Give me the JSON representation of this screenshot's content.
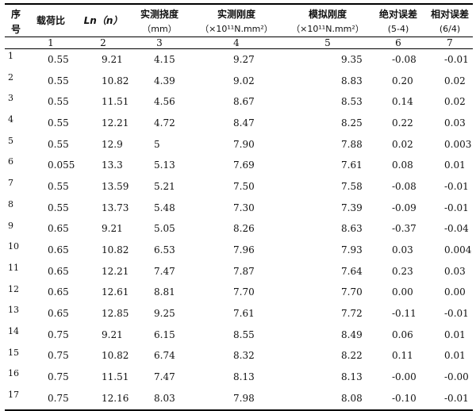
{
  "headers": {
    "seq_line1": "序",
    "seq_line2": "号",
    "load_ratio": "载荷比",
    "ln": "Ln（n）",
    "deflection": "实测挠度",
    "deflection_unit": "（mm）",
    "measured_stiffness": "实测刚度",
    "measured_stiffness_unit": "（×10¹¹N.mm²）",
    "simulated_stiffness": "模拟刚度",
    "simulated_stiffness_unit": "（×10¹¹N.mm²）",
    "abs_error": "绝对误差",
    "abs_error_formula": "(5-4)",
    "rel_error": "相对误差",
    "rel_error_formula": "(6/4)"
  },
  "column_index": [
    "1",
    "2",
    "3",
    "4",
    "5",
    "6",
    "7"
  ],
  "rows": [
    {
      "seq": "1",
      "c1": "0.55",
      "c2": "9.21",
      "c3": "4.15",
      "c4": "9.27",
      "c5": "9.35",
      "c6": "-0.08",
      "c7": "-0.01"
    },
    {
      "seq": "2",
      "c1": "0.55",
      "c2": "10.82",
      "c3": "4.39",
      "c4": "9.02",
      "c5": "8.83",
      "c6": "0.20",
      "c7": "0.02"
    },
    {
      "seq": "3",
      "c1": "0.55",
      "c2": "11.51",
      "c3": "4.56",
      "c4": "8.67",
      "c5": "8.53",
      "c6": "0.14",
      "c7": "0.02"
    },
    {
      "seq": "4",
      "c1": "0.55",
      "c2": "12.21",
      "c3": "4.72",
      "c4": "8.47",
      "c5": "8.25",
      "c6": "0.22",
      "c7": "0.03"
    },
    {
      "seq": "5",
      "c1": "0.55",
      "c2": "12.9",
      "c3": "5",
      "c4": "7.90",
      "c5": "7.88",
      "c6": "0.02",
      "c7": "0.003"
    },
    {
      "seq": "6",
      "c1": "0.055",
      "c2": "13.3",
      "c3": "5.13",
      "c4": "7.69",
      "c5": "7.61",
      "c6": "0.08",
      "c7": "0.01"
    },
    {
      "seq": "7",
      "c1": "0.55",
      "c2": "13.59",
      "c3": "5.21",
      "c4": "7.50",
      "c5": "7.58",
      "c6": "-0.08",
      "c7": "-0.01"
    },
    {
      "seq": "8",
      "c1": "0.55",
      "c2": "13.73",
      "c3": "5.48",
      "c4": "7.30",
      "c5": "7.39",
      "c6": "-0.09",
      "c7": "-0.01"
    },
    {
      "seq": "9",
      "c1": "0.65",
      "c2": "9.21",
      "c3": "5.05",
      "c4": "8.26",
      "c5": "8.63",
      "c6": "-0.37",
      "c7": "-0.04"
    },
    {
      "seq": "10",
      "c1": "0.65",
      "c2": "10.82",
      "c3": "6.53",
      "c4": "7.96",
      "c5": "7.93",
      "c6": "0.03",
      "c7": "0.004"
    },
    {
      "seq": "11",
      "c1": "0.65",
      "c2": "12.21",
      "c3": "7.47",
      "c4": "7.87",
      "c5": "7.64",
      "c6": "0.23",
      "c7": "0.03"
    },
    {
      "seq": "12",
      "c1": "0.65",
      "c2": "12.61",
      "c3": "8.81",
      "c4": "7.70",
      "c5": "7.70",
      "c6": "0.00",
      "c7": "0.00"
    },
    {
      "seq": "13",
      "c1": "0.65",
      "c2": "12.85",
      "c3": "9.25",
      "c4": "7.61",
      "c5": "7.72",
      "c6": "-0.11",
      "c7": "-0.01"
    },
    {
      "seq": "14",
      "c1": "0.75",
      "c2": "9.21",
      "c3": "6.15",
      "c4": "8.55",
      "c5": "8.49",
      "c6": "0.06",
      "c7": "0.01"
    },
    {
      "seq": "15",
      "c1": "0.75",
      "c2": "10.82",
      "c3": "6.74",
      "c4": "8.32",
      "c5": "8.22",
      "c6": "0.11",
      "c7": "0.01"
    },
    {
      "seq": "16",
      "c1": "0.75",
      "c2": "11.51",
      "c3": "7.47",
      "c4": "8.13",
      "c5": "8.13",
      "c6": "-0.00",
      "c7": "-0.00"
    },
    {
      "seq": "17",
      "c1": "0.75",
      "c2": "12.16",
      "c3": "8.03",
      "c4": "7.98",
      "c5": "8.08",
      "c6": "-0.10",
      "c7": "-0.01"
    }
  ]
}
